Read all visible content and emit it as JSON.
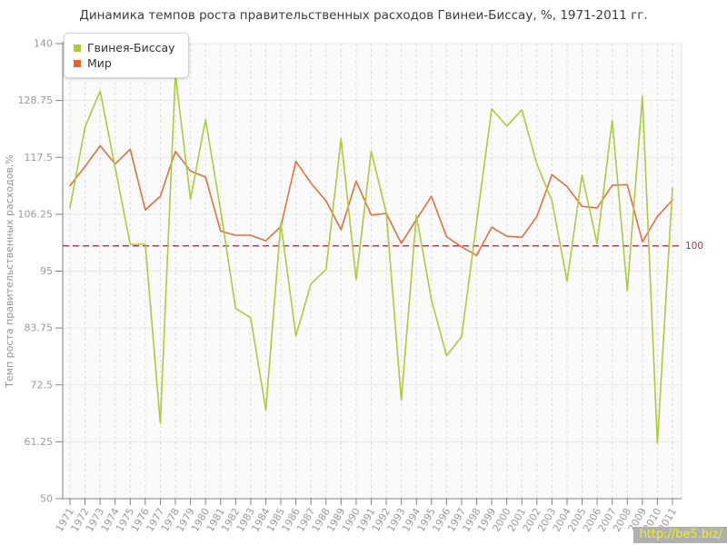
{
  "title": "Динамика темпов роста правительственных расходов Гвинеи-Биссау, %, 1971-2011 гг.",
  "legend": {
    "items": [
      {
        "label": "Гвинея-Биссау",
        "color": "#a9cc3d"
      },
      {
        "label": "Мир",
        "color": "#e0662c"
      }
    ]
  },
  "watermark": "http://be5.biz/",
  "y_axis": {
    "title": "Темп роста правительственных расходов,%",
    "tick_labels": [
      "140",
      "128.75",
      "117.5",
      "106.25",
      "95",
      "83.75",
      "72.5",
      "61.25",
      "50"
    ],
    "min": 50,
    "max": 140
  },
  "reference_line": {
    "value": 100,
    "label": "100",
    "color": "#993a44"
  },
  "chart_data": {
    "type": "line",
    "title": "Динамика темпов роста правительственных расходов Гвинеи-Биссау, %, 1971-2011 гг.",
    "xlabel": "",
    "ylabel": "Темп роста правительственных расходов,%",
    "ylim": [
      50,
      140
    ],
    "grid": true,
    "legend_position": "top-left",
    "ref_line": 100,
    "x": [
      1971,
      1972,
      1973,
      1974,
      1975,
      1976,
      1977,
      1978,
      1979,
      1980,
      1981,
      1982,
      1983,
      1984,
      1985,
      1986,
      1987,
      1988,
      1989,
      1990,
      1991,
      1992,
      1993,
      1994,
      1995,
      1996,
      1997,
      1998,
      1999,
      2000,
      2001,
      2002,
      2003,
      2004,
      2005,
      2006,
      2007,
      2008,
      2009,
      2010,
      2011
    ],
    "series": [
      {
        "name": "Гвинея-Биссау",
        "color": "#a9cc3d",
        "values": [
          107.5,
          123.5,
          130.6,
          115.5,
          100.3,
          100.3,
          64.9,
          133.9,
          109.2,
          125.0,
          107.0,
          87.6,
          85.8,
          67.5,
          104.5,
          82.2,
          92.5,
          95.3,
          121.2,
          93.3,
          118.7,
          106.5,
          69.5,
          106.0,
          89.3,
          78.3,
          82.0,
          104.7,
          127.1,
          123.7,
          126.9,
          116.2,
          108.9,
          93.0,
          114.0,
          100.4,
          124.8,
          91.1,
          129.6,
          60.9,
          111.4
        ]
      },
      {
        "name": "Мир",
        "color": "#e0703c",
        "values": [
          111.9,
          115.7,
          119.8,
          116.2,
          119.1,
          107.1,
          109.8,
          118.7,
          114.8,
          113.6,
          102.9,
          102.1,
          102.1,
          101.0,
          103.8,
          116.7,
          112.4,
          108.9,
          103.2,
          112.8,
          106.1,
          106.4,
          100.5,
          105.2,
          109.8,
          101.8,
          99.8,
          98.1,
          103.7,
          101.9,
          101.7,
          105.8,
          114.1,
          111.7,
          107.8,
          107.5,
          112.0,
          112.1,
          100.8,
          105.8,
          109.1
        ]
      }
    ]
  }
}
